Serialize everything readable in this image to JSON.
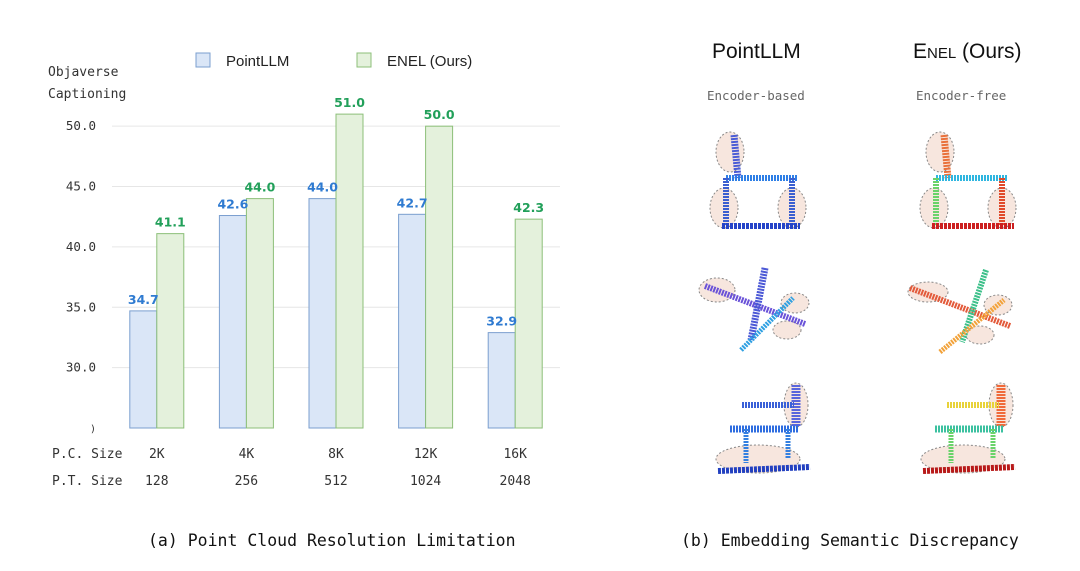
{
  "chart_data": {
    "type": "bar",
    "ylabel_line1": "Objaverse",
    "ylabel_line2": "Captioning",
    "categories": [
      "2K",
      "4K",
      "8K",
      "12K",
      "16K"
    ],
    "row_labels": [
      "P.C. Size",
      "P.T. Size"
    ],
    "second_row": [
      "128",
      "256",
      "512",
      "1024",
      "2048"
    ],
    "ylim": [
      25,
      52.5
    ],
    "yticks": [
      "30.0",
      "35.0",
      "40.0",
      "45.0",
      "50.0"
    ],
    "series": [
      {
        "name": "PointLLM",
        "values": [
          34.7,
          42.6,
          44.0,
          42.7,
          32.9
        ],
        "value_labels": [
          "34.7",
          "42.6",
          "44.0",
          "42.7",
          "32.9"
        ]
      },
      {
        "name": "ENEL (Ours)",
        "values": [
          41.1,
          44.0,
          51.0,
          50.0,
          42.3
        ],
        "value_labels": [
          "41.1",
          "44.0",
          "51.0",
          "50.0",
          "42.3"
        ]
      }
    ],
    "colors": {
      "pointllm_fill": "#dae6f7",
      "pointllm_stroke": "#7b9fcf",
      "pointllm_label": "#2f7bd1",
      "enel_fill": "#e4f1dc",
      "enel_stroke": "#8cbf78",
      "enel_label": "#22a05a"
    },
    "grid": true,
    "legend_position": "top"
  },
  "right_panel": {
    "col1_title": "PointLLM",
    "col2_title_prefix": "E",
    "col2_title_smallcaps": "NEL",
    "col2_title_suffix": " (Ours)",
    "col1_subtitle": "Encoder-based",
    "col2_subtitle": "Encoder-free",
    "thumbnails": [
      "chair",
      "airplane",
      "desk-chair"
    ]
  },
  "captions": {
    "left": "(a) Point Cloud Resolution Limitation",
    "right": "(b) Embedding Semantic Discrepancy"
  }
}
